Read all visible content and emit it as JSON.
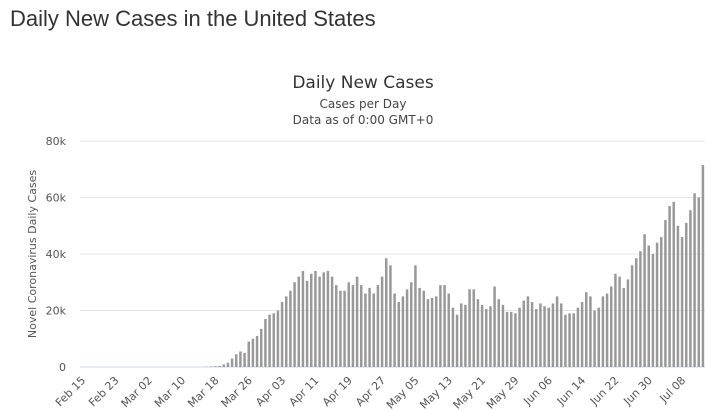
{
  "page": {
    "title": "Daily New Cases in the United States"
  },
  "colors": {
    "bar": "#999999",
    "grid": "#e6e6e6",
    "axis": "#ccd6eb",
    "text": "#333333"
  },
  "chart_data": {
    "type": "bar",
    "title": "Daily New Cases",
    "subtitle_lines": [
      "Cases per Day",
      "Data as of 0:00 GMT+0"
    ],
    "xlabel": "",
    "ylabel": "Novel Coronavirus Daily Cases",
    "ylim": [
      0,
      80000
    ],
    "yticks": [
      {
        "value": 0,
        "label": "0"
      },
      {
        "value": 20000,
        "label": "20k"
      },
      {
        "value": 40000,
        "label": "40k"
      },
      {
        "value": 60000,
        "label": "60k"
      },
      {
        "value": 80000,
        "label": "80k"
      }
    ],
    "xtick_labels": [
      "Feb 15",
      "Feb 23",
      "Mar 02",
      "Mar 10",
      "Mar 18",
      "Mar 26",
      "Apr 03",
      "Apr 11",
      "Apr 19",
      "Apr 27",
      "May 05",
      "May 13",
      "May 21",
      "May 29",
      "Jun 06",
      "Jun 14",
      "Jun 22",
      "Jun 30",
      "Jul 08"
    ],
    "grid": true,
    "legend": "none",
    "start_label": "Feb 15",
    "values": [
      0,
      0,
      0,
      0,
      0,
      0,
      0,
      0,
      0,
      0,
      0,
      0,
      0,
      0,
      0,
      0,
      0,
      0,
      0,
      0,
      0,
      0,
      0,
      0,
      0,
      0,
      0,
      0,
      0,
      0,
      100,
      200,
      300,
      400,
      900,
      1500,
      3000,
      4500,
      5500,
      5000,
      9000,
      10000,
      11000,
      13500,
      17000,
      18500,
      19000,
      20000,
      23000,
      25000,
      27000,
      30000,
      32000,
      34000,
      30500,
      33000,
      34000,
      32000,
      33500,
      34000,
      32000,
      29000,
      27000,
      27000,
      30000,
      29000,
      32000,
      29000,
      26000,
      28000,
      26000,
      29000,
      32000,
      38500,
      36000,
      26000,
      23000,
      25000,
      27500,
      30000,
      36000,
      28000,
      27000,
      24000,
      24500,
      25000,
      29000,
      29000,
      26000,
      21000,
      18500,
      22500,
      22000,
      27500,
      27500,
      24000,
      22000,
      20500,
      21500,
      28500,
      24000,
      22000,
      19500,
      19500,
      19000,
      21000,
      23500,
      25000,
      23000,
      20500,
      22500,
      21500,
      21000,
      22500,
      25000,
      22500,
      18500,
      19000,
      19000,
      21000,
      23000,
      26500,
      25000,
      20000,
      21000,
      25000,
      26000,
      28500,
      33000,
      32000,
      28000,
      31000,
      36000,
      38500,
      41000,
      47000,
      43000,
      40000,
      44000,
      46000,
      52000,
      57000,
      58500,
      50000,
      46000,
      51000,
      55500,
      61500,
      60000,
      71500
    ]
  }
}
